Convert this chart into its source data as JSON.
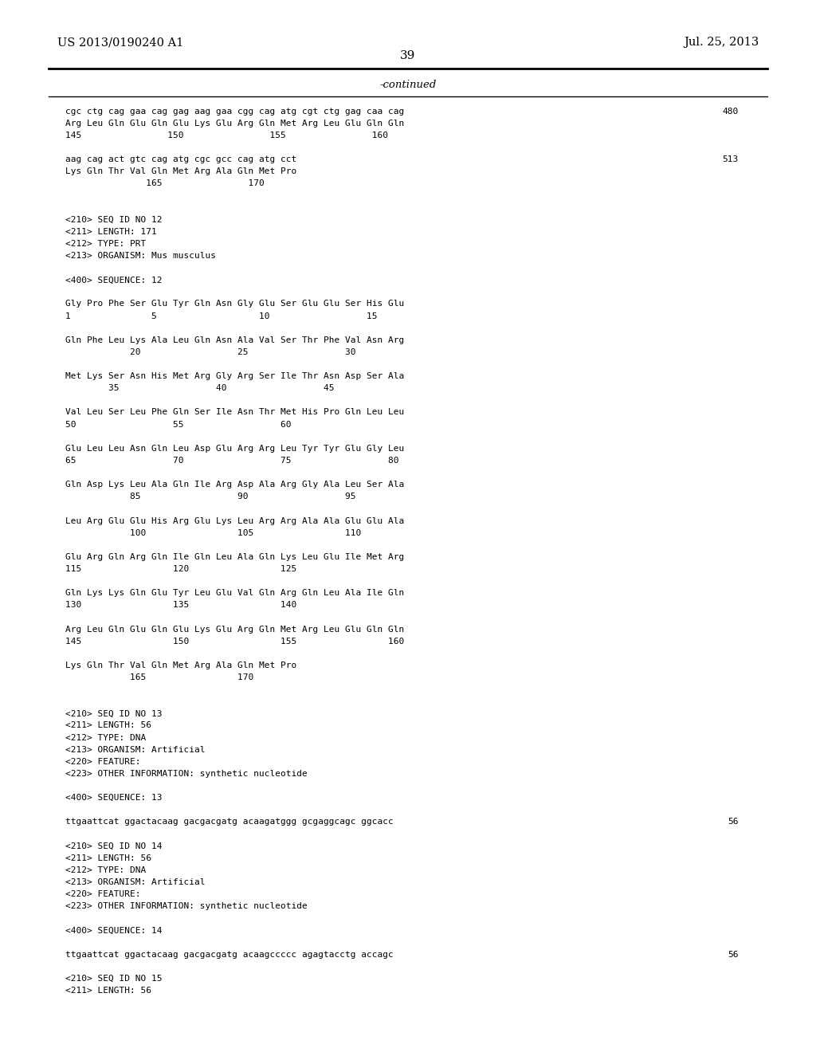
{
  "bg_color": "#ffffff",
  "header_left": "US 2013/0190240 A1",
  "header_right": "Jul. 25, 2013",
  "page_number": "39",
  "continued_label": "-continued",
  "content_lines": [
    [
      "cgc ctg cag gaa cag gag aag gaa cgg cag atg cgt ctg gag caa cag",
      "480"
    ],
    [
      "Arg Leu Gln Glu Gln Glu Lys Glu Arg Gln Met Arg Leu Glu Gln Gln",
      ""
    ],
    [
      "145                150                155                160",
      ""
    ],
    [
      "",
      ""
    ],
    [
      "aag cag act gtc cag atg cgc gcc cag atg cct",
      "513"
    ],
    [
      "Lys Gln Thr Val Gln Met Arg Ala Gln Met Pro",
      ""
    ],
    [
      "               165                170",
      ""
    ],
    [
      "",
      ""
    ],
    [
      "",
      ""
    ],
    [
      "<210> SEQ ID NO 12",
      ""
    ],
    [
      "<211> LENGTH: 171",
      ""
    ],
    [
      "<212> TYPE: PRT",
      ""
    ],
    [
      "<213> ORGANISM: Mus musculus",
      ""
    ],
    [
      "",
      ""
    ],
    [
      "<400> SEQUENCE: 12",
      ""
    ],
    [
      "",
      ""
    ],
    [
      "Gly Pro Phe Ser Glu Tyr Gln Asn Gly Glu Ser Glu Glu Ser His Glu",
      ""
    ],
    [
      "1               5                   10                  15",
      ""
    ],
    [
      "",
      ""
    ],
    [
      "Gln Phe Leu Lys Ala Leu Gln Asn Ala Val Ser Thr Phe Val Asn Arg",
      ""
    ],
    [
      "            20                  25                  30",
      ""
    ],
    [
      "",
      ""
    ],
    [
      "Met Lys Ser Asn His Met Arg Gly Arg Ser Ile Thr Asn Asp Ser Ala",
      ""
    ],
    [
      "        35                  40                  45",
      ""
    ],
    [
      "",
      ""
    ],
    [
      "Val Leu Ser Leu Phe Gln Ser Ile Asn Thr Met His Pro Gln Leu Leu",
      ""
    ],
    [
      "50                  55                  60",
      ""
    ],
    [
      "",
      ""
    ],
    [
      "Glu Leu Leu Asn Gln Leu Asp Glu Arg Arg Leu Tyr Tyr Glu Gly Leu",
      ""
    ],
    [
      "65                  70                  75                  80",
      ""
    ],
    [
      "",
      ""
    ],
    [
      "Gln Asp Lys Leu Ala Gln Ile Arg Asp Ala Arg Gly Ala Leu Ser Ala",
      ""
    ],
    [
      "            85                  90                  95",
      ""
    ],
    [
      "",
      ""
    ],
    [
      "Leu Arg Glu Glu His Arg Glu Lys Leu Arg Arg Ala Ala Glu Glu Ala",
      ""
    ],
    [
      "            100                 105                 110",
      ""
    ],
    [
      "",
      ""
    ],
    [
      "Glu Arg Gln Arg Gln Ile Gln Leu Ala Gln Lys Leu Glu Ile Met Arg",
      ""
    ],
    [
      "115                 120                 125",
      ""
    ],
    [
      "",
      ""
    ],
    [
      "Gln Lys Lys Gln Glu Tyr Leu Glu Val Gln Arg Gln Leu Ala Ile Gln",
      ""
    ],
    [
      "130                 135                 140",
      ""
    ],
    [
      "",
      ""
    ],
    [
      "Arg Leu Gln Glu Gln Glu Lys Glu Arg Gln Met Arg Leu Glu Gln Gln",
      ""
    ],
    [
      "145                 150                 155                 160",
      ""
    ],
    [
      "",
      ""
    ],
    [
      "Lys Gln Thr Val Gln Met Arg Ala Gln Met Pro",
      ""
    ],
    [
      "            165                 170",
      ""
    ],
    [
      "",
      ""
    ],
    [
      "",
      ""
    ],
    [
      "<210> SEQ ID NO 13",
      ""
    ],
    [
      "<211> LENGTH: 56",
      ""
    ],
    [
      "<212> TYPE: DNA",
      ""
    ],
    [
      "<213> ORGANISM: Artificial",
      ""
    ],
    [
      "<220> FEATURE:",
      ""
    ],
    [
      "<223> OTHER INFORMATION: synthetic nucleotide",
      ""
    ],
    [
      "",
      ""
    ],
    [
      "<400> SEQUENCE: 13",
      ""
    ],
    [
      "",
      ""
    ],
    [
      "ttgaattcat ggactacaag gacgacgatg acaagatggg gcgaggcagc ggcacc",
      "56"
    ],
    [
      "",
      ""
    ],
    [
      "<210> SEQ ID NO 14",
      ""
    ],
    [
      "<211> LENGTH: 56",
      ""
    ],
    [
      "<212> TYPE: DNA",
      ""
    ],
    [
      "<213> ORGANISM: Artificial",
      ""
    ],
    [
      "<220> FEATURE:",
      ""
    ],
    [
      "<223> OTHER INFORMATION: synthetic nucleotide",
      ""
    ],
    [
      "",
      ""
    ],
    [
      "<400> SEQUENCE: 14",
      ""
    ],
    [
      "",
      ""
    ],
    [
      "ttgaattcat ggactacaag gacgacgatg acaagccccc agagtacctg accagc",
      "56"
    ],
    [
      "",
      ""
    ],
    [
      "<210> SEQ ID NO 15",
      ""
    ],
    [
      "<211> LENGTH: 56",
      ""
    ]
  ]
}
